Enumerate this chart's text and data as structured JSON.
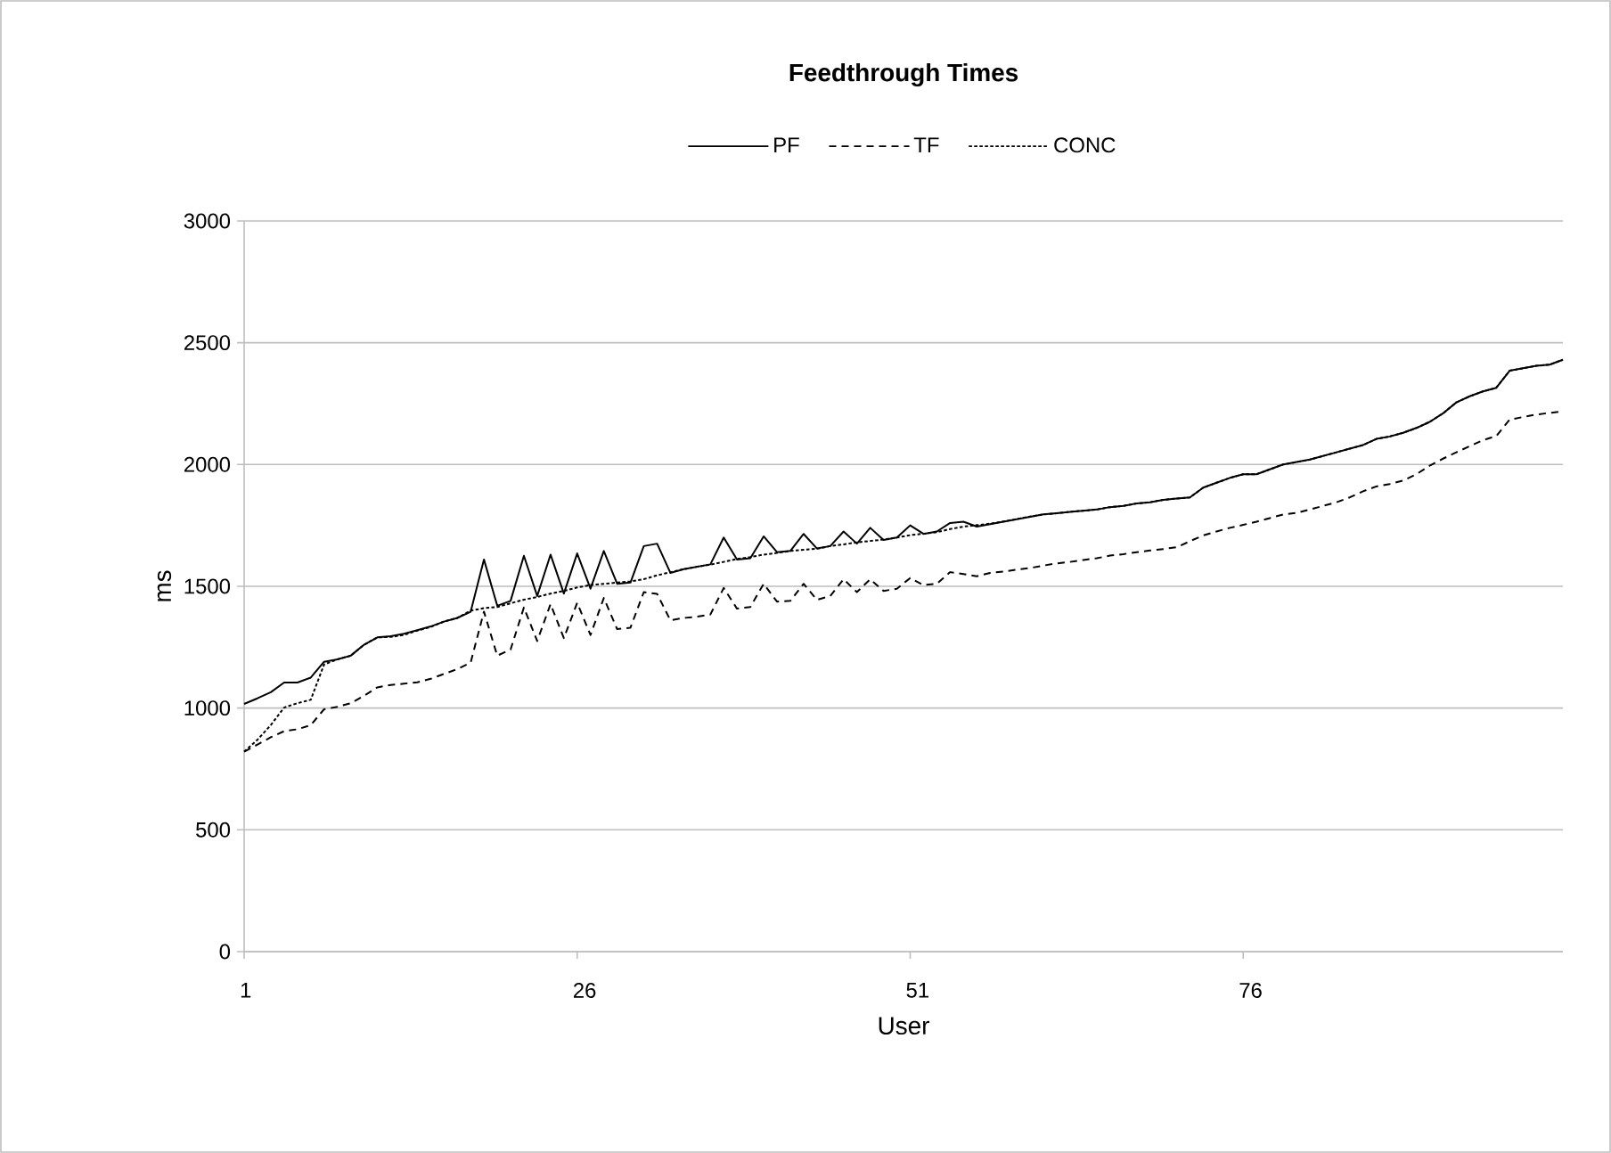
{
  "chart_data": {
    "type": "line",
    "title": "Feedthrough Times",
    "xlabel": "User",
    "ylabel": "ms",
    "x": [
      1,
      2,
      3,
      4,
      5,
      6,
      7,
      8,
      9,
      10,
      11,
      12,
      13,
      14,
      15,
      16,
      17,
      18,
      19,
      20,
      21,
      22,
      23,
      24,
      25,
      26,
      27,
      28,
      29,
      30,
      31,
      32,
      33,
      34,
      35,
      36,
      37,
      38,
      39,
      40,
      41,
      42,
      43,
      44,
      45,
      46,
      47,
      48,
      49,
      50,
      51,
      52,
      53,
      54,
      55,
      56,
      57,
      58,
      59,
      60,
      61,
      62,
      63,
      64,
      65,
      66,
      67,
      68,
      69,
      70,
      71,
      72,
      73,
      74,
      75,
      76,
      77,
      78,
      79,
      80,
      81,
      82,
      83,
      84,
      85,
      86,
      87,
      88,
      89,
      90,
      91,
      92,
      93,
      94,
      95,
      96,
      97,
      98,
      99,
      100
    ],
    "xlim": [
      1,
      100
    ],
    "xticks": [
      1,
      26,
      51,
      76
    ],
    "ylim": [
      0,
      3000
    ],
    "yticks": [
      0,
      500,
      1000,
      1500,
      2000,
      2500,
      3000
    ],
    "grid": "y",
    "legend": "top",
    "series": [
      {
        "name": "PF",
        "color": "#000000",
        "line_style": "solid",
        "values": [
          1017,
          1040,
          1065,
          1105,
          1105,
          1125,
          1190,
          1200,
          1215,
          1260,
          1290,
          1295,
          1305,
          1320,
          1335,
          1355,
          1370,
          1395,
          1610,
          1420,
          1440,
          1625,
          1460,
          1630,
          1470,
          1635,
          1490,
          1645,
          1510,
          1515,
          1665,
          1675,
          1555,
          1570,
          1580,
          1590,
          1700,
          1610,
          1615,
          1705,
          1640,
          1645,
          1715,
          1655,
          1665,
          1725,
          1675,
          1740,
          1690,
          1700,
          1750,
          1715,
          1725,
          1760,
          1765,
          1745,
          1755,
          1765,
          1775,
          1785,
          1795,
          1800,
          1805,
          1810,
          1815,
          1825,
          1830,
          1840,
          1845,
          1855,
          1860,
          1865,
          1905,
          1925,
          1945,
          1960,
          1960,
          1980,
          2000,
          2010,
          2020,
          2035,
          2050,
          2065,
          2080,
          2105,
          2115,
          2130,
          2150,
          2175,
          2210,
          2255,
          2280,
          2300,
          2315,
          2385,
          2395,
          2405,
          2410,
          2430
        ]
      },
      {
        "name": "TF",
        "color": "#000000",
        "line_style": "dashed",
        "values": [
          821,
          850,
          880,
          905,
          913,
          930,
          995,
          1005,
          1020,
          1050,
          1085,
          1095,
          1100,
          1106,
          1120,
          1140,
          1160,
          1186,
          1396,
          1215,
          1240,
          1413,
          1275,
          1427,
          1287,
          1432,
          1300,
          1452,
          1324,
          1330,
          1476,
          1469,
          1360,
          1370,
          1375,
          1384,
          1493,
          1408,
          1415,
          1510,
          1437,
          1440,
          1510,
          1444,
          1460,
          1529,
          1476,
          1529,
          1481,
          1490,
          1534,
          1505,
          1510,
          1558,
          1550,
          1541,
          1555,
          1560,
          1568,
          1575,
          1585,
          1594,
          1600,
          1608,
          1615,
          1626,
          1632,
          1640,
          1647,
          1653,
          1660,
          1685,
          1709,
          1725,
          1740,
          1752,
          1765,
          1780,
          1795,
          1801,
          1815,
          1830,
          1845,
          1865,
          1890,
          1910,
          1920,
          1934,
          1960,
          1995,
          2024,
          2050,
          2075,
          2100,
          2117,
          2184,
          2195,
          2205,
          2212,
          2218
        ]
      },
      {
        "name": "CONC",
        "color": "#000000",
        "line_style": "dotted",
        "values": [
          821,
          870,
          930,
          1002,
          1020,
          1034,
          1179,
          1200,
          1215,
          1260,
          1290,
          1292,
          1300,
          1318,
          1333,
          1355,
          1370,
          1400,
          1410,
          1415,
          1430,
          1445,
          1456,
          1470,
          1481,
          1495,
          1505,
          1510,
          1515,
          1520,
          1529,
          1545,
          1558,
          1570,
          1580,
          1589,
          1600,
          1612,
          1620,
          1630,
          1637,
          1645,
          1650,
          1654,
          1665,
          1672,
          1680,
          1686,
          1692,
          1700,
          1710,
          1716,
          1722,
          1735,
          1745,
          1751,
          1757,
          1766,
          1776,
          1786,
          1795,
          1800,
          1806,
          1810,
          1815,
          1825,
          1830,
          1840,
          1845,
          1855,
          1860,
          1865,
          1905,
          1925,
          1945,
          1960,
          1960,
          1980,
          2000,
          2010,
          2020,
          2035,
          2050,
          2065,
          2080,
          2105,
          2115,
          2130,
          2150,
          2175,
          2210,
          2255,
          2280,
          2300,
          2315,
          2385,
          2395,
          2405,
          2410,
          2430
        ]
      }
    ]
  }
}
